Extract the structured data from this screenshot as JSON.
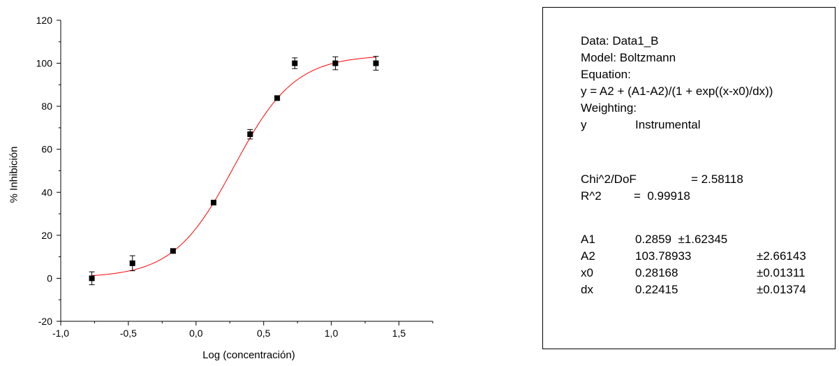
{
  "chart_data": {
    "type": "scatter",
    "xlabel": "Log (concentración)",
    "ylabel": "% Inhibición",
    "xlim": [
      -1.0,
      1.75
    ],
    "ylim": [
      -20,
      120
    ],
    "xticks": [
      "-1,0",
      "-0,5",
      "0,0",
      "0,5",
      "1,0",
      "1,5"
    ],
    "xtick_values": [
      -1.0,
      -0.5,
      0.0,
      0.5,
      1.0,
      1.5
    ],
    "yticks": [
      "-20",
      "0",
      "20",
      "40",
      "60",
      "80",
      "100",
      "120"
    ],
    "ytick_values": [
      -20,
      0,
      20,
      40,
      60,
      80,
      100,
      120
    ],
    "points": [
      {
        "x": -0.77,
        "y": 0.0,
        "err": 3.0
      },
      {
        "x": -0.47,
        "y": 7.0,
        "err": 3.5
      },
      {
        "x": -0.17,
        "y": 12.7,
        "err": 1.0
      },
      {
        "x": 0.13,
        "y": 35.2,
        "err": 1.0
      },
      {
        "x": 0.4,
        "y": 67.0,
        "err": 2.2
      },
      {
        "x": 0.6,
        "y": 83.8,
        "err": 1.0
      },
      {
        "x": 0.73,
        "y": 100.0,
        "err": 2.5
      },
      {
        "x": 1.03,
        "y": 100.0,
        "err": 3.0
      },
      {
        "x": 1.33,
        "y": 100.0,
        "err": 3.2
      }
    ],
    "fit": {
      "model": "Boltzmann",
      "A1": 0.2859,
      "A2": 103.78933,
      "x0": 0.28168,
      "dx": 0.22415,
      "x_range": [
        -0.77,
        1.33
      ],
      "color": "#ff0000"
    },
    "marker_color": "#000000"
  },
  "stats": {
    "data": "Data: Data1_B",
    "model": "Model: Boltzmann",
    "equation_label": "Equation:",
    "equation": "y = A2 + (A1-A2)/(1 + exp((x-x0)/dx))",
    "weighting_label": "Weighting:",
    "weighting_var": "y",
    "weighting_type": "Instrumental",
    "chi_label": "Chi^2/DoF",
    "chi_value": "= 2.58118",
    "r2_label": "R^2",
    "r2_value": "=  0.99918",
    "params": [
      {
        "name": "A1",
        "value": "0.2859  ±1.62345",
        "error": ""
      },
      {
        "name": "A2",
        "value": "103.78933",
        "error": "±2.66143"
      },
      {
        "name": "x0",
        "value": "0.28168",
        "error": "±0.01311"
      },
      {
        "name": "dx",
        "value": "0.22415",
        "error": "±0.01374"
      }
    ]
  }
}
